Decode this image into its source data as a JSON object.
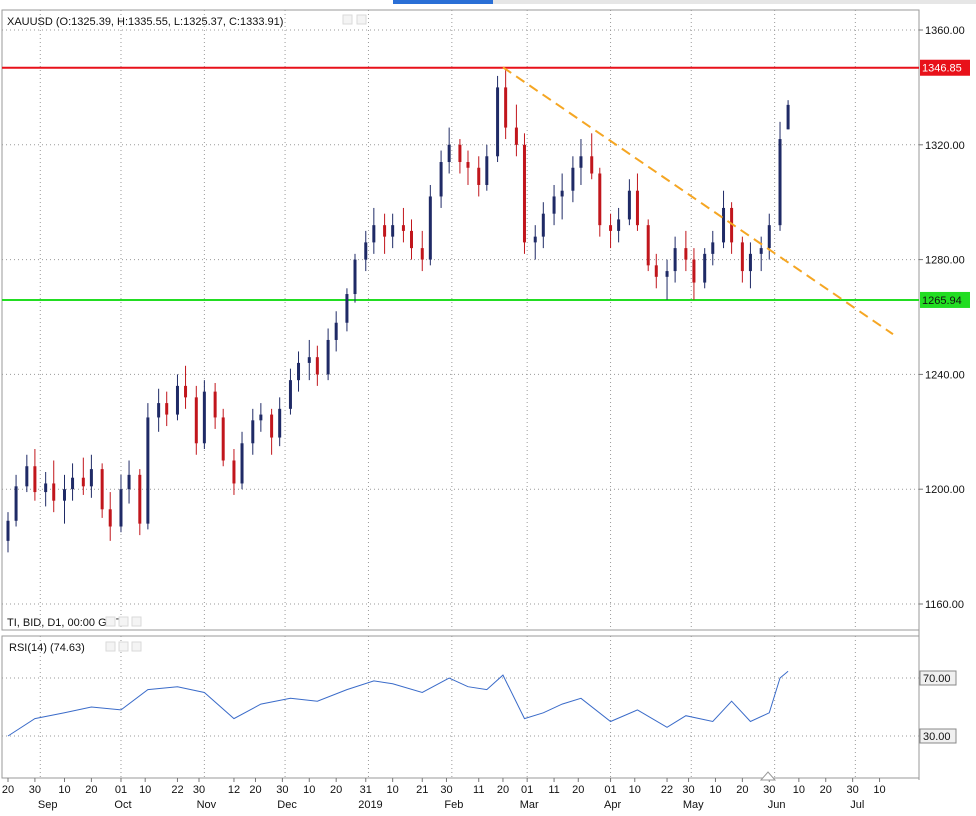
{
  "main_chart": {
    "symbol_label": "XAUUSD (O:1325.39, H:1335.55, L:1325.37, C:1333.91)",
    "footer_label": "TI, BID, D1, 00:00 GMT",
    "price_ticks": [
      "1360.00",
      "1320.00",
      "1280.00",
      "1240.00",
      "1200.00",
      "1160.00"
    ],
    "resistance": {
      "label": "1346.85",
      "color": "#e8111a"
    },
    "support": {
      "label": "1265.94",
      "color": "#22dd22"
    },
    "trendline_color": "#f5a623",
    "up_color": "#1f2a66",
    "down_color": "#c1161c"
  },
  "rsi_panel": {
    "label": "RSI(14) (74.63)",
    "level_high": "70.00",
    "level_low": "30.00",
    "line_color": "#3a6bc9"
  },
  "time_axis": {
    "day_ticks": [
      "20",
      "30",
      "10",
      "20",
      "01",
      "10",
      "22",
      "30",
      "12",
      "20",
      "30",
      "10",
      "20",
      "31",
      "10",
      "21",
      "30",
      "11",
      "20",
      "01",
      "11",
      "20",
      "01",
      "10",
      "22",
      "30",
      "10",
      "20",
      "30",
      "10",
      "20",
      "30",
      "10"
    ],
    "month_labels": [
      "Sep",
      "Oct",
      "Nov",
      "Dec",
      "2019",
      "Feb",
      "Mar",
      "Apr",
      "May",
      "Jun",
      "Jul"
    ]
  },
  "chart_data": [
    {
      "type": "candlestick",
      "title": "XAUUSD (O:1325.39, H:1335.55, L:1325.37, C:1333.91)",
      "timeframe": "D1",
      "ylim": [
        1150,
        1368
      ],
      "x_range": [
        "2018-08-20",
        "2019-07-15"
      ],
      "grid": true,
      "horizontal_levels": [
        1346.85,
        1265.94
      ],
      "trendline": {
        "from": [
          "2019-02-20",
          1347
        ],
        "to": [
          "2019-07-15",
          1254
        ]
      },
      "series": [
        {
          "values": [
            [
              "2018-08-20",
              1182,
              1192,
              1178,
              1189
            ],
            [
              "2018-08-23",
              1189,
              1205,
              1187,
              1201
            ],
            [
              "2018-08-27",
              1201,
              1212,
              1199,
              1208
            ],
            [
              "2018-08-30",
              1208,
              1214,
              1196,
              1199
            ],
            [
              "2018-09-03",
              1199,
              1206,
              1194,
              1202
            ],
            [
              "2018-09-06",
              1202,
              1210,
              1192,
              1196
            ],
            [
              "2018-09-10",
              1196,
              1205,
              1188,
              1200
            ],
            [
              "2018-09-13",
              1200,
              1209,
              1196,
              1204
            ],
            [
              "2018-09-17",
              1204,
              1211,
              1198,
              1201
            ],
            [
              "2018-09-20",
              1201,
              1212,
              1197,
              1207
            ],
            [
              "2018-09-24",
              1207,
              1209,
              1190,
              1193
            ],
            [
              "2018-09-27",
              1193,
              1199,
              1182,
              1187
            ],
            [
              "2018-10-01",
              1187,
              1205,
              1185,
              1200
            ],
            [
              "2018-10-04",
              1200,
              1210,
              1195,
              1205
            ],
            [
              "2018-10-08",
              1205,
              1207,
              1184,
              1188
            ],
            [
              "2018-10-11",
              1188,
              1230,
              1186,
              1225
            ],
            [
              "2018-10-15",
              1225,
              1235,
              1220,
              1230
            ],
            [
              "2018-10-18",
              1230,
              1234,
              1222,
              1226
            ],
            [
              "2018-10-22",
              1226,
              1240,
              1224,
              1236
            ],
            [
              "2018-10-25",
              1236,
              1243,
              1228,
              1232
            ],
            [
              "2018-10-29",
              1232,
              1236,
              1212,
              1216
            ],
            [
              "2018-11-01",
              1216,
              1238,
              1214,
              1234
            ],
            [
              "2018-11-05",
              1234,
              1237,
              1221,
              1225
            ],
            [
              "2018-11-08",
              1225,
              1228,
              1208,
              1210
            ],
            [
              "2018-11-12",
              1210,
              1214,
              1198,
              1202
            ],
            [
              "2018-11-15",
              1202,
              1220,
              1200,
              1216
            ],
            [
              "2018-11-19",
              1216,
              1228,
              1212,
              1224
            ],
            [
              "2018-11-22",
              1224,
              1230,
              1220,
              1226
            ],
            [
              "2018-11-26",
              1226,
              1228,
              1212,
              1218
            ],
            [
              "2018-11-29",
              1218,
              1232,
              1215,
              1228
            ],
            [
              "2018-12-03",
              1228,
              1242,
              1226,
              1238
            ],
            [
              "2018-12-06",
              1238,
              1248,
              1234,
              1244
            ],
            [
              "2018-12-10",
              1244,
              1252,
              1238,
              1246
            ],
            [
              "2018-12-13",
              1246,
              1250,
              1236,
              1240
            ],
            [
              "2018-12-17",
              1240,
              1256,
              1238,
              1252
            ],
            [
              "2018-12-20",
              1252,
              1262,
              1248,
              1258
            ],
            [
              "2018-12-24",
              1258,
              1270,
              1255,
              1268
            ],
            [
              "2018-12-27",
              1268,
              1282,
              1265,
              1280
            ],
            [
              "2018-12-31",
              1280,
              1290,
              1276,
              1286
            ],
            [
              "2019-01-03",
              1286,
              1298,
              1282,
              1292
            ],
            [
              "2019-01-07",
              1292,
              1296,
              1282,
              1288
            ],
            [
              "2019-01-10",
              1288,
              1296,
              1284,
              1292
            ],
            [
              "2019-01-14",
              1292,
              1298,
              1286,
              1290
            ],
            [
              "2019-01-17",
              1290,
              1294,
              1280,
              1284
            ],
            [
              "2019-01-21",
              1284,
              1290,
              1276,
              1280
            ],
            [
              "2019-01-24",
              1280,
              1306,
              1278,
              1302
            ],
            [
              "2019-01-28",
              1302,
              1318,
              1298,
              1314
            ],
            [
              "2019-01-31",
              1314,
              1326,
              1310,
              1320
            ],
            [
              "2019-02-04",
              1320,
              1322,
              1310,
              1314
            ],
            [
              "2019-02-07",
              1314,
              1318,
              1306,
              1312
            ],
            [
              "2019-02-11",
              1312,
              1316,
              1302,
              1306
            ],
            [
              "2019-02-14",
              1306,
              1320,
              1304,
              1316
            ],
            [
              "2019-02-18",
              1316,
              1344,
              1314,
              1340
            ],
            [
              "2019-02-21",
              1340,
              1346,
              1322,
              1326
            ],
            [
              "2019-02-25",
              1326,
              1334,
              1316,
              1320
            ],
            [
              "2019-02-28",
              1320,
              1324,
              1282,
              1286
            ],
            [
              "2019-03-04",
              1286,
              1292,
              1280,
              1288
            ],
            [
              "2019-03-07",
              1288,
              1300,
              1284,
              1296
            ],
            [
              "2019-03-11",
              1296,
              1306,
              1292,
              1302
            ],
            [
              "2019-03-14",
              1302,
              1310,
              1294,
              1304
            ],
            [
              "2019-03-18",
              1304,
              1316,
              1300,
              1312
            ],
            [
              "2019-03-21",
              1312,
              1322,
              1306,
              1316
            ],
            [
              "2019-03-25",
              1316,
              1324,
              1308,
              1310
            ],
            [
              "2019-03-28",
              1310,
              1312,
              1288,
              1292
            ],
            [
              "2019-04-01",
              1292,
              1296,
              1284,
              1290
            ],
            [
              "2019-04-04",
              1290,
              1298,
              1286,
              1294
            ],
            [
              "2019-04-08",
              1294,
              1308,
              1292,
              1304
            ],
            [
              "2019-04-11",
              1304,
              1310,
              1290,
              1292
            ],
            [
              "2019-04-15",
              1292,
              1294,
              1276,
              1278
            ],
            [
              "2019-04-18",
              1278,
              1282,
              1270,
              1274
            ],
            [
              "2019-04-22",
              1274,
              1280,
              1266,
              1276
            ],
            [
              "2019-04-25",
              1276,
              1288,
              1272,
              1284
            ],
            [
              "2019-04-29",
              1284,
              1290,
              1276,
              1280
            ],
            [
              "2019-05-02",
              1280,
              1284,
              1266,
              1272
            ],
            [
              "2019-05-06",
              1272,
              1284,
              1270,
              1282
            ],
            [
              "2019-05-09",
              1282,
              1290,
              1278,
              1286
            ],
            [
              "2019-05-13",
              1286,
              1304,
              1284,
              1298
            ],
            [
              "2019-05-16",
              1298,
              1300,
              1282,
              1286
            ],
            [
              "2019-05-20",
              1286,
              1288,
              1272,
              1276
            ],
            [
              "2019-05-23",
              1276,
              1286,
              1270,
              1282
            ],
            [
              "2019-05-27",
              1282,
              1288,
              1276,
              1284
            ],
            [
              "2019-05-30",
              1284,
              1296,
              1280,
              1292
            ],
            [
              "2019-06-03",
              1292,
              1328,
              1290,
              1322
            ],
            [
              "2019-06-06",
              1325.39,
              1335.55,
              1325.37,
              1333.91
            ]
          ]
        }
      ]
    },
    {
      "type": "line",
      "title": "RSI(14) (74.63)",
      "ylim": [
        20,
        80
      ],
      "reference_lines": [
        70,
        30
      ],
      "series": [
        {
          "values": [
            [
              "2018-08-20",
              30
            ],
            [
              "2018-08-30",
              42
            ],
            [
              "2018-09-10",
              46
            ],
            [
              "2018-09-20",
              50
            ],
            [
              "2018-10-01",
              48
            ],
            [
              "2018-10-11",
              62
            ],
            [
              "2018-10-22",
              64
            ],
            [
              "2018-11-01",
              60
            ],
            [
              "2018-11-12",
              42
            ],
            [
              "2018-11-22",
              52
            ],
            [
              "2018-12-03",
              56
            ],
            [
              "2018-12-13",
              54
            ],
            [
              "2018-12-24",
              62
            ],
            [
              "2019-01-03",
              68
            ],
            [
              "2019-01-10",
              66
            ],
            [
              "2019-01-21",
              60
            ],
            [
              "2019-01-31",
              70
            ],
            [
              "2019-02-07",
              64
            ],
            [
              "2019-02-14",
              62
            ],
            [
              "2019-02-20",
              72
            ],
            [
              "2019-02-28",
              42
            ],
            [
              "2019-03-07",
              46
            ],
            [
              "2019-03-14",
              52
            ],
            [
              "2019-03-21",
              56
            ],
            [
              "2019-04-01",
              40
            ],
            [
              "2019-04-11",
              48
            ],
            [
              "2019-04-22",
              36
            ],
            [
              "2019-04-29",
              44
            ],
            [
              "2019-05-09",
              40
            ],
            [
              "2019-05-16",
              54
            ],
            [
              "2019-05-23",
              40
            ],
            [
              "2019-05-30",
              46
            ],
            [
              "2019-06-03",
              70
            ],
            [
              "2019-06-06",
              74.63
            ]
          ]
        }
      ]
    }
  ]
}
